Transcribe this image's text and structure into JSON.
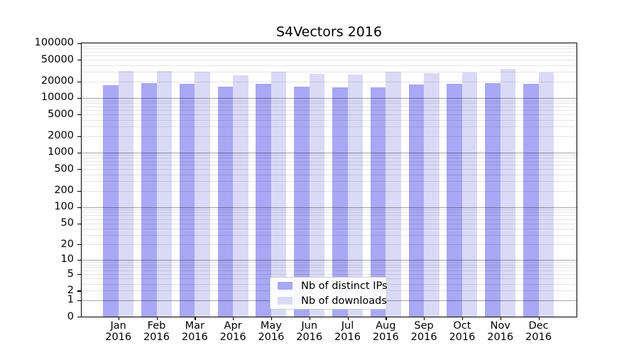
{
  "colors": {
    "distinct_ips": "#a8a8f4",
    "downloads": "#dadaf6",
    "grid_major": "#a6a6a6",
    "grid_minor": "#e6e6e6",
    "axis": "#000000",
    "legend_border": "#cccccc",
    "background": "#ffffff"
  },
  "legend": {
    "items": [
      {
        "label": "Nb of distinct IPs",
        "series": "distinct_ips"
      },
      {
        "label": "Nb of downloads",
        "series": "downloads"
      }
    ]
  },
  "y_axis": {
    "scale": "log10(1+x)",
    "tick_values": [
      100000,
      50000,
      20000,
      10000,
      5000,
      2000,
      1000,
      500,
      200,
      100,
      50,
      20,
      10,
      5,
      2,
      1,
      0
    ],
    "tick_labels": [
      "100000",
      "50000",
      "20000",
      "10000",
      "5000",
      "2000",
      "1000",
      "500",
      "200",
      "100",
      "50",
      "20",
      "10",
      "5",
      "2",
      "1",
      "0"
    ]
  },
  "chart_data": {
    "type": "bar",
    "title": "S4Vectors 2016",
    "categories": [
      "Jan\n2016",
      "Feb\n2016",
      "Mar\n2016",
      "Apr\n2016",
      "May\n2016",
      "Jun\n2016",
      "Jul\n2016",
      "Aug\n2016",
      "Sep\n2016",
      "Oct\n2016",
      "Nov\n2016",
      "Dec\n2016"
    ],
    "series": [
      {
        "name": "Nb of distinct IPs",
        "values": [
          17100,
          18600,
          18000,
          16100,
          18000,
          16100,
          15800,
          15800,
          17500,
          18300,
          19000,
          18000
        ]
      },
      {
        "name": "Nb of downloads",
        "values": [
          31200,
          31400,
          30500,
          25800,
          30500,
          27400,
          26900,
          30200,
          28700,
          29700,
          33700,
          29000
        ]
      }
    ],
    "xlabel": "",
    "ylabel": "",
    "ylim": [
      0,
      100000
    ],
    "yscale": "log1p",
    "grid": "horizontal major+minor",
    "legend_position": "inside-bottom-center"
  }
}
